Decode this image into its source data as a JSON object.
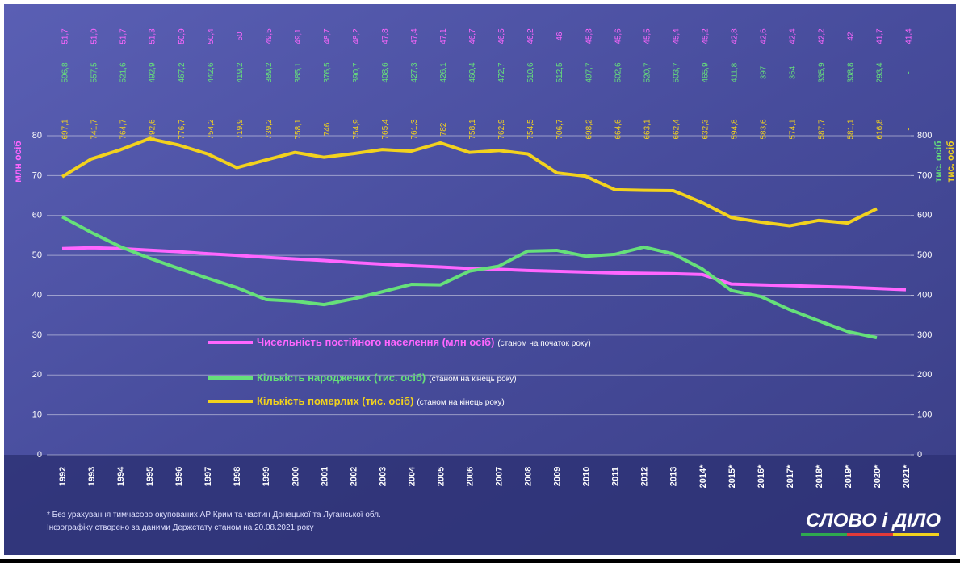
{
  "chart_data": {
    "type": "line",
    "categories": [
      "1992",
      "1993",
      "1994",
      "1995",
      "1996",
      "1997",
      "1998",
      "1999",
      "2000",
      "2001",
      "2002",
      "2003",
      "2004",
      "2005",
      "2006",
      "2007",
      "2008",
      "2009",
      "2010",
      "2011",
      "2012",
      "2013",
      "2014*",
      "2015*",
      "2016*",
      "2017*",
      "2018*",
      "2019*",
      "2020*",
      "2021*"
    ],
    "ylabel": "млн осіб",
    "y2labels": [
      "тис. осіб",
      "тис. осіб"
    ],
    "ylim": [
      0,
      80
    ],
    "yticks": [
      0,
      10,
      20,
      30,
      40,
      50,
      60,
      70,
      80
    ],
    "y2lim": [
      0,
      800
    ],
    "y2ticks": [
      0,
      100,
      200,
      300,
      400,
      500,
      600,
      700,
      800
    ],
    "grid": true,
    "series": [
      {
        "name": "Чисельність постійного населення (млн осіб)",
        "note": "(станом на початок року)",
        "color": "#ff66ff",
        "axis": "y",
        "values": [
          51.7,
          51.9,
          51.7,
          51.3,
          50.9,
          50.4,
          50,
          49.5,
          49.1,
          48.7,
          48.2,
          47.8,
          47.4,
          47.1,
          46.7,
          46.5,
          46.2,
          46,
          45.8,
          45.6,
          45.5,
          45.4,
          45.2,
          42.8,
          42.6,
          42.4,
          42.2,
          42,
          41.7,
          41.4
        ],
        "value_labels": [
          "51,7",
          "51,9",
          "51,7",
          "51,3",
          "50,9",
          "50,4",
          "50",
          "49,5",
          "49,1",
          "48,7",
          "48,2",
          "47,8",
          "47,4",
          "47,1",
          "46,7",
          "46,5",
          "46,2",
          "46",
          "45,8",
          "45,6",
          "45,5",
          "45,4",
          "45,2",
          "42,8",
          "42,6",
          "42,4",
          "42,2",
          "42",
          "41,7",
          "41,4"
        ]
      },
      {
        "name": "Кількість народжених (тис. осіб)",
        "note": "(станом на кінець року)",
        "color": "#66e07a",
        "axis": "y2",
        "values": [
          596.8,
          557.5,
          521.6,
          492.9,
          467.2,
          442.6,
          419.2,
          389.2,
          385.1,
          376.5,
          390.7,
          408.6,
          427.3,
          426.1,
          460.4,
          472.7,
          510.6,
          512.5,
          497.7,
          502.6,
          520.7,
          503.7,
          465.9,
          411.8,
          397,
          364,
          335.9,
          308.8,
          293.4,
          null
        ],
        "value_labels": [
          "596,8",
          "557,5",
          "521,6",
          "492,9",
          "467,2",
          "442,6",
          "419,2",
          "389,2",
          "385,1",
          "376,5",
          "390,7",
          "408,6",
          "427,3",
          "426,1",
          "460,4",
          "472,7",
          "510,6",
          "512,5",
          "497,7",
          "502,6",
          "520,7",
          "503,7",
          "465,9",
          "411,8",
          "397",
          "364",
          "335,9",
          "308,8",
          "293,4",
          "-"
        ]
      },
      {
        "name": "Кількість померлих (тис. осіб)",
        "note": "(станом на кінець року)",
        "color": "#f2d21e",
        "axis": "y2",
        "values": [
          697.1,
          741.7,
          764.7,
          792.6,
          776.7,
          754.2,
          719.9,
          739.2,
          758.1,
          746,
          754.9,
          765.4,
          761.3,
          782,
          758.1,
          762.9,
          754.5,
          706.7,
          698.2,
          664.6,
          663.1,
          662.4,
          632.3,
          594.8,
          583.6,
          574.1,
          587.7,
          581.1,
          616.8,
          null
        ],
        "value_labels": [
          "697,1",
          "741,7",
          "764,7",
          "792,6",
          "776,7",
          "754,2",
          "719,9",
          "739,2",
          "758,1",
          "746",
          "754,9",
          "765,4",
          "761,3",
          "782",
          "758,1",
          "762,9",
          "754,5",
          "706,7",
          "698,2",
          "664,6",
          "663,1",
          "662,4",
          "632,3",
          "594,8",
          "583,6",
          "574,1",
          "587,7",
          "581,1",
          "616,8",
          "-"
        ]
      }
    ],
    "footnote": "* Без урахування тимчасово окупованих АР Крим та частин Донецької та Луганської обл.",
    "source": "Інфографіку створено за даними Держстату станом на 20.08.2021 року",
    "logo": "СЛОВО і ДІЛО"
  }
}
